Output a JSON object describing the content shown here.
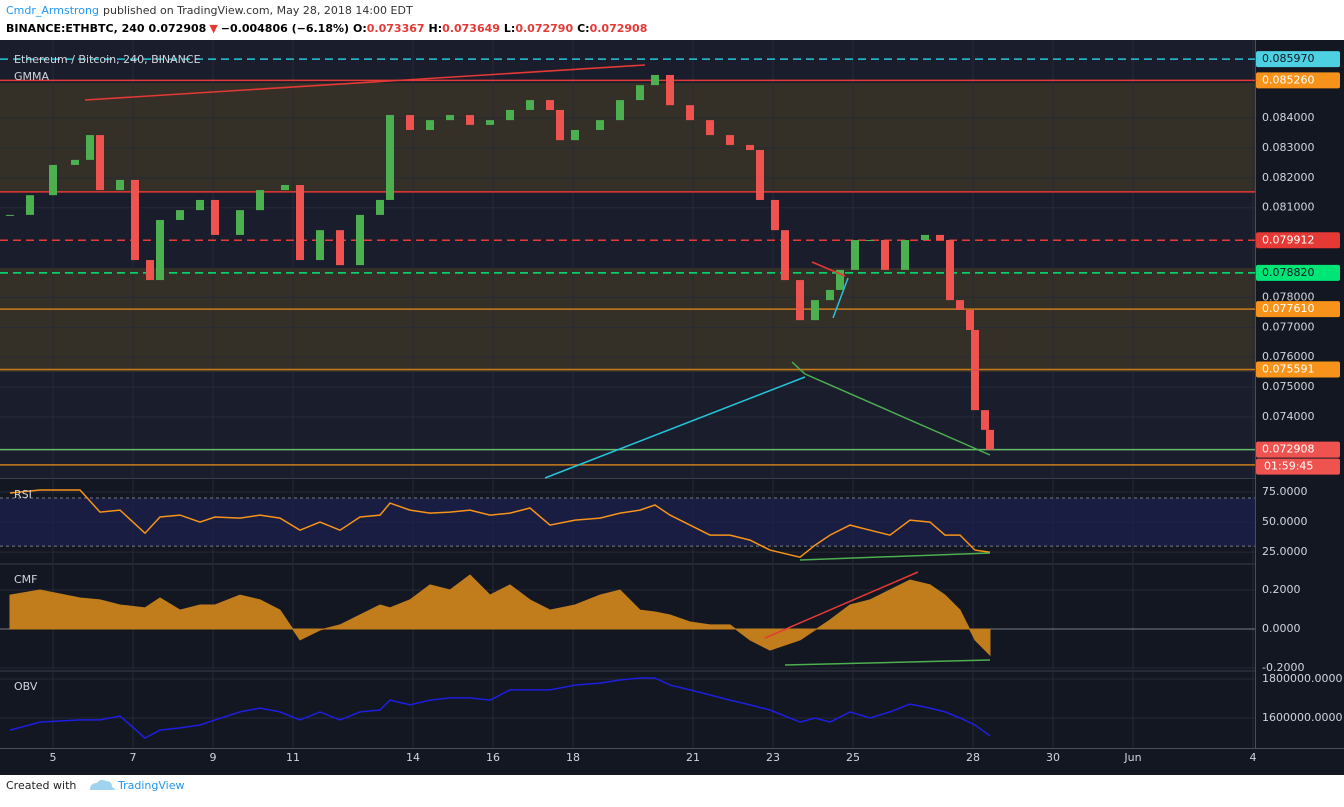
{
  "header": {
    "author": "Cmdr_Armstrong",
    "published": "published on TradingView.com, May 28, 2018 14:00 EDT",
    "symbol": "BINANCE:ETHBTC, 240",
    "last": "0.072908",
    "arrow": "▼",
    "change": "−0.004806 (−6.18%)",
    "ohlc": [
      {
        "label": "O:",
        "value": "0.073367"
      },
      {
        "label": "H:",
        "value": "0.073649"
      },
      {
        "label": "L:",
        "value": "0.072790"
      },
      {
        "label": "C:",
        "value": "0.072908"
      }
    ]
  },
  "footer": {
    "created": "Created with",
    "brand": "TradingView"
  },
  "chart_data": [
    {
      "type": "candlestick",
      "title": "Ethereum / Bitcoin, 240, BINANCE",
      "subtitle": "GMMA",
      "color_up": "#4caf50",
      "color_down": "#ef5350",
      "x": [
        3.925,
        4.425,
        5,
        5.55,
        5.925,
        6.175,
        6.675,
        7.05,
        7.425,
        7.675,
        8.175,
        8.675,
        9.05,
        9.675,
        10.175,
        10.8,
        11.175,
        11.675,
        12.175,
        12.675,
        13.175,
        13.425,
        13.925,
        14.425,
        14.925,
        15.425,
        15.925,
        16.425,
        16.925,
        17.425,
        17.675,
        18.05,
        18.675,
        19.175,
        19.675,
        20.05,
        20.425,
        20.925,
        21.425,
        21.925,
        22.425,
        22.675,
        23.05,
        23.3,
        23.675,
        24.05,
        24.425,
        24.675,
        25.05,
        25.425,
        25.8,
        26.3,
        26.8,
        27.175,
        27.425,
        27.675,
        27.925,
        28.05,
        28.3,
        28.425
      ],
      "values": [
        0.08076,
        0.08142,
        0.08243,
        0.0826,
        0.08343,
        0.08159,
        0.08193,
        0.07925,
        0.07858,
        0.08059,
        0.08092,
        0.08126,
        0.08009,
        0.08092,
        0.08159,
        0.08176,
        0.07925,
        0.08025,
        0.07908,
        0.08076,
        0.08126,
        0.0841,
        0.0836,
        0.08393,
        0.0841,
        0.08377,
        0.08393,
        0.08427,
        0.0846,
        0.08427,
        0.08326,
        0.0836,
        0.08393,
        0.0846,
        0.0851,
        0.08544,
        0.08443,
        0.08393,
        0.08343,
        0.0831,
        0.08293,
        0.08126,
        0.08025,
        0.07858,
        0.07724,
        0.07791,
        0.07825,
        0.07892,
        0.07992,
        0.07992,
        0.07892,
        0.07992,
        0.08009,
        0.07992,
        0.07791,
        0.07758,
        0.07691,
        0.07423,
        0.07357,
        0.072908
      ],
      "xlim": [
        3.675,
        35.05
      ],
      "ylim": [
        0.07196,
        0.08661
      ],
      "yticks": [
        {
          "value": 0.084,
          "label": "0.084000"
        },
        {
          "value": 0.083,
          "label": "0.083000"
        },
        {
          "value": 0.082,
          "label": "0.082000"
        },
        {
          "value": 0.081,
          "label": "0.081000"
        },
        {
          "value": 0.078,
          "label": "0.078000"
        },
        {
          "value": 0.077,
          "label": "0.077000"
        },
        {
          "value": 0.076,
          "label": "0.076000"
        },
        {
          "value": 0.075,
          "label": "0.075000"
        },
        {
          "value": 0.074,
          "label": "0.074000"
        }
      ],
      "levels": [
        {
          "value": 0.08597,
          "label": "0.085970",
          "color": "#26c6da",
          "box": "#4dd0e1",
          "dash": true
        },
        {
          "value": 0.08526,
          "label": "0.085260",
          "color": "#e53935",
          "box": "#f7931a",
          "dash": false
        },
        {
          "value": 0.08153,
          "color": "#e53935",
          "dash": false
        },
        {
          "value": 0.079912,
          "label": "0.079912",
          "color": "#e53935",
          "box": "#e53935",
          "dash": true
        },
        {
          "value": 0.07882,
          "label": "0.078820",
          "color": "#00e676",
          "box": "#00e676",
          "dash": true
        },
        {
          "value": 0.07761,
          "label": "0.077610",
          "color": "#c97b1a",
          "box": "#f7931a",
          "dash": false
        },
        {
          "value": 0.075591,
          "label": "0.075591",
          "color": "#c97b1a",
          "box": "#f7931a",
          "dash": false
        },
        {
          "value": 0.072908,
          "label": "0.072908",
          "color": "#66bb6a",
          "box": "#ef5350",
          "dash": false
        },
        {
          "value": 0.0724,
          "color": "#c97b1a",
          "dash": false
        }
      ],
      "countdown": "01:59:45"
    },
    {
      "type": "line",
      "title": "RSI",
      "color": "#f7931a",
      "x": [
        3.925,
        4.675,
        5.675,
        6.175,
        6.675,
        7.3,
        7.675,
        8.175,
        8.675,
        9.05,
        9.675,
        10.175,
        10.675,
        11.175,
        11.675,
        12.175,
        12.675,
        13.175,
        13.425,
        13.925,
        14.425,
        14.925,
        15.425,
        15.925,
        16.425,
        16.925,
        17.425,
        18.05,
        18.675,
        19.175,
        19.675,
        20.05,
        20.425,
        20.925,
        21.425,
        21.925,
        22.425,
        22.925,
        23.675,
        24.05,
        24.425,
        24.925,
        25.425,
        25.925,
        26.425,
        26.925,
        27.3,
        27.675,
        28.05,
        28.425
      ],
      "values": [
        74.2,
        76.7,
        76.7,
        58.3,
        60,
        40.8,
        54.2,
        55.8,
        50,
        54.2,
        53.3,
        55.8,
        53.3,
        43.3,
        50,
        43.3,
        54.2,
        55.8,
        65.8,
        60,
        57.5,
        58.3,
        60,
        55.8,
        57.5,
        61.7,
        47.5,
        51.7,
        53.3,
        57.5,
        60,
        64.2,
        55.8,
        47.5,
        39.2,
        39.2,
        35,
        26.7,
        20.8,
        30.8,
        39.2,
        47.5,
        43.3,
        39.2,
        51.7,
        50,
        39.2,
        39.2,
        26.7,
        25
      ],
      "bands": [
        30,
        70
      ],
      "xlim": [
        3.675,
        35.05
      ],
      "ylim": [
        16,
        85
      ],
      "yticks": [
        {
          "value": 75,
          "label": "75.0000"
        },
        {
          "value": 50,
          "label": "50.0000"
        },
        {
          "value": 25,
          "label": "25.0000"
        }
      ]
    },
    {
      "type": "area",
      "title": "CMF",
      "color": "#c17d1c",
      "x": [
        3.925,
        4.675,
        5.675,
        6.175,
        6.675,
        7.3,
        7.675,
        8.175,
        8.675,
        9.05,
        9.675,
        10.175,
        10.675,
        11.175,
        11.675,
        12.175,
        12.675,
        13.175,
        13.425,
        13.925,
        14.425,
        14.925,
        15.425,
        15.925,
        16.425,
        16.925,
        17.425,
        18.05,
        18.675,
        19.175,
        19.675,
        20.05,
        20.425,
        20.925,
        21.425,
        21.925,
        22.425,
        22.925,
        23.675,
        24.05,
        24.425,
        24.925,
        25.425,
        25.925,
        26.425,
        26.925,
        27.3,
        27.675,
        28.05,
        28.425
      ],
      "values": [
        0.174,
        0.2,
        0.159,
        0.149,
        0.123,
        0.108,
        0.159,
        0.097,
        0.123,
        0.123,
        0.174,
        0.149,
        0.097,
        -0.056,
        -0.005,
        0.021,
        0.072,
        0.123,
        0.108,
        0.149,
        0.226,
        0.2,
        0.277,
        0.174,
        0.226,
        0.149,
        0.097,
        0.123,
        0.174,
        0.2,
        0.097,
        0.087,
        0.072,
        0.036,
        0.021,
        0.021,
        -0.056,
        -0.108,
        -0.056,
        -0.005,
        0.046,
        0.123,
        0.149,
        0.2,
        0.251,
        0.226,
        0.174,
        0.097,
        -0.056,
        -0.133
      ],
      "xlim": [
        3.675,
        35.05
      ],
      "ylim": [
        -0.21,
        0.328
      ],
      "yticks": [
        {
          "value": 0.2,
          "label": "0.2000"
        },
        {
          "value": 0,
          "label": "0.0000"
        },
        {
          "value": -0.2,
          "label": "-0.2000"
        }
      ]
    },
    {
      "type": "line",
      "title": "OBV",
      "color": "#1e1ee0",
      "x": [
        3.925,
        4.675,
        5.675,
        6.175,
        6.675,
        7.3,
        7.675,
        8.175,
        8.675,
        9.05,
        9.675,
        10.175,
        10.675,
        11.175,
        11.675,
        12.175,
        12.675,
        13.175,
        13.425,
        13.925,
        14.425,
        14.925,
        15.425,
        15.925,
        16.425,
        16.925,
        17.425,
        18.05,
        18.675,
        19.175,
        19.675,
        20.05,
        20.425,
        20.925,
        21.425,
        21.925,
        22.425,
        22.925,
        23.675,
        24.05,
        24.425,
        24.925,
        25.425,
        25.925,
        26.425,
        26.925,
        27.3,
        27.675,
        28.05,
        28.425
      ],
      "values": [
        1538000,
        1579000,
        1590000,
        1590000,
        1610000,
        1497000,
        1538000,
        1549000,
        1564000,
        1590000,
        1631000,
        1651000,
        1631000,
        1590000,
        1631000,
        1590000,
        1631000,
        1641000,
        1692000,
        1667000,
        1692000,
        1703000,
        1703000,
        1692000,
        1744000,
        1744000,
        1744000,
        1769000,
        1779000,
        1795000,
        1805000,
        1805000,
        1769000,
        1744000,
        1718000,
        1692000,
        1667000,
        1641000,
        1579000,
        1600000,
        1579000,
        1631000,
        1600000,
        1631000,
        1672000,
        1651000,
        1631000,
        1600000,
        1564000,
        1508000
      ],
      "xlim": [
        3.675,
        35.05
      ],
      "ylim": [
        1446000,
        1836000
      ],
      "yticks": [
        {
          "value": 1800000,
          "label": "1800000.0000"
        },
        {
          "value": 1600000,
          "label": "1600000.0000"
        }
      ],
      "xticks": [
        5,
        7,
        9,
        11,
        14,
        16,
        18,
        21,
        23,
        25,
        28,
        30,
        {
          "value": 32,
          "label": "Jun"
        },
        {
          "value": 35,
          "label": "4"
        }
      ]
    }
  ]
}
